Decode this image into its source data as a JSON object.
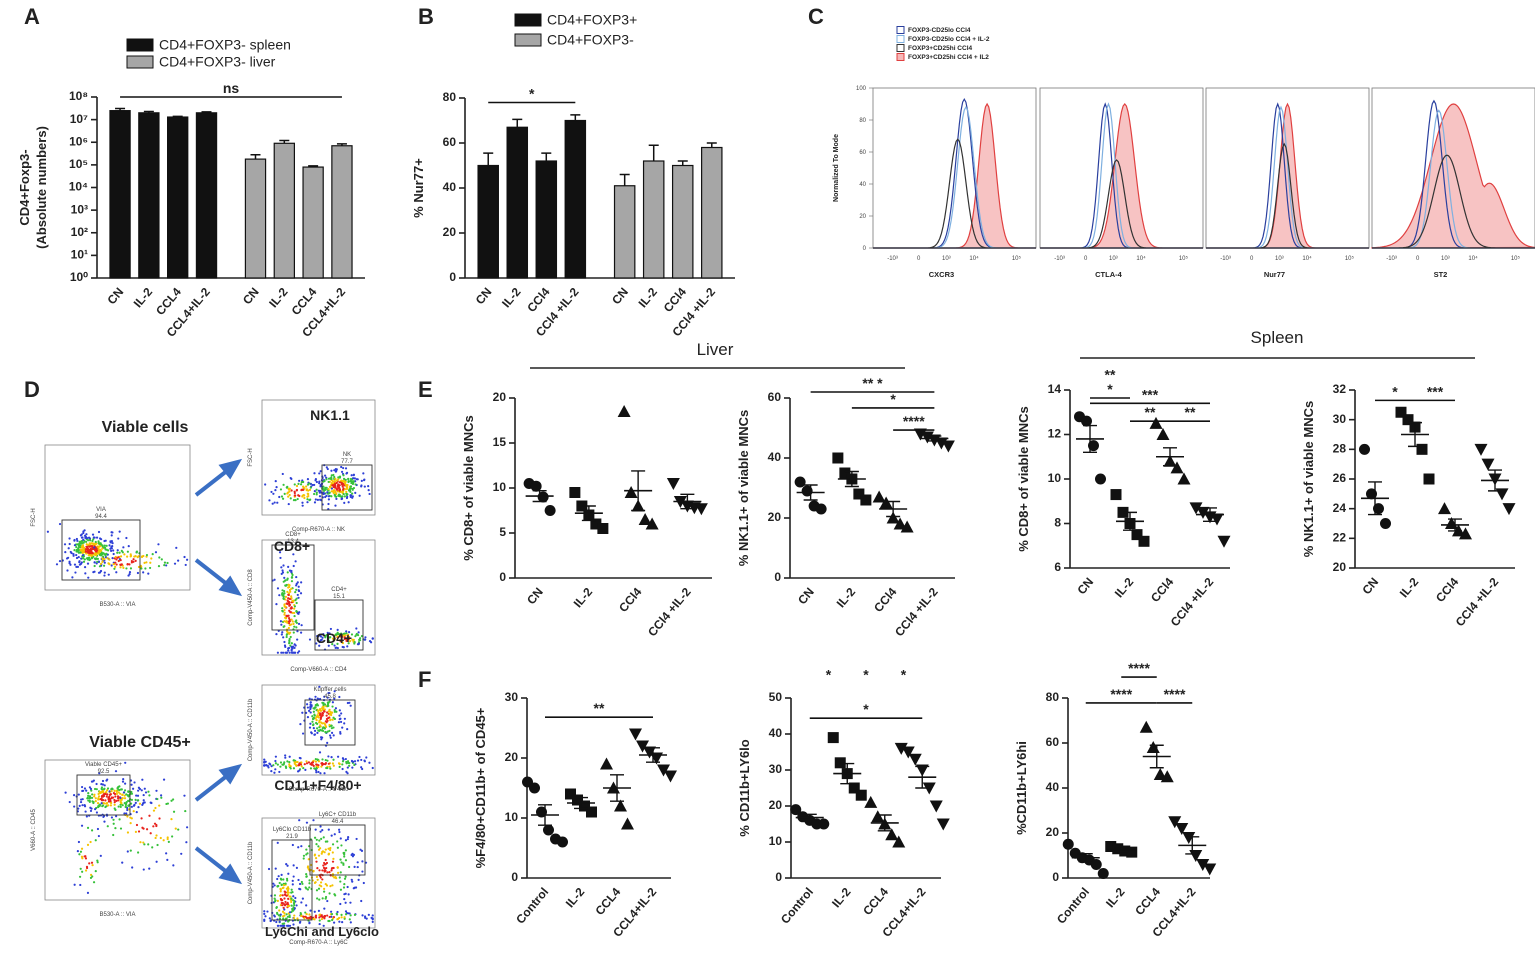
{
  "panel_labels": [
    "A",
    "B",
    "C",
    "D",
    "E",
    "F"
  ],
  "group_labels": {
    "liver": "Liver",
    "spleen": "Spleen"
  },
  "chart_data": [
    {
      "type": "bar",
      "log": true,
      "ylabel": [
        "CD4+Foxp3-",
        "(Absolute numbers)"
      ],
      "categories": [
        "CN",
        "IL-2",
        "CCL4",
        "CCL4+IL-2",
        "CN",
        "IL-2",
        "CCL4",
        "CCL4+IL-2"
      ],
      "series": [
        {
          "name": "CD4+FOXP3- spleen",
          "color": "#111111",
          "values": [
            25000000,
            20000000,
            13000000,
            20000000,
            null,
            null,
            null,
            null
          ],
          "errors": [
            6000000,
            3000000,
            1000000,
            2000000,
            null,
            null,
            null,
            null
          ]
        },
        {
          "name": "CD4+FOXP3- liver",
          "color": "#a6a6a6",
          "values": [
            null,
            null,
            null,
            null,
            180000,
            900000,
            80000,
            700000
          ],
          "errors": [
            null,
            null,
            null,
            null,
            100000,
            300000,
            10000,
            150000
          ]
        }
      ],
      "ylim": [
        1,
        100000000
      ],
      "yticks": [
        {
          "value": 1,
          "label": "10⁰"
        },
        {
          "value": 10,
          "label": "10¹"
        },
        {
          "value": 100,
          "label": "10²"
        },
        {
          "value": 1000,
          "label": "10³"
        },
        {
          "value": 10000,
          "label": "10⁴"
        },
        {
          "value": 100000,
          "label": "10⁵"
        },
        {
          "value": 1000000,
          "label": "10⁶"
        },
        {
          "value": 10000000,
          "label": "10⁷"
        },
        {
          "value": 100000000,
          "label": "10⁸"
        }
      ],
      "annotations": [
        {
          "text": "ns",
          "from": 0,
          "to": 7,
          "y": 100000000
        }
      ]
    },
    {
      "type": "bar",
      "ylabel": "% Nur77+",
      "categories": [
        "CN",
        "IL-2",
        "CCl4",
        "CCl4 +IL-2",
        "CN",
        "IL-2",
        "CCl4",
        "CCl4 +IL-2"
      ],
      "series": [
        {
          "name": "CD4+FOXP3+",
          "color": "#111111",
          "values": [
            50,
            67,
            52,
            70,
            null,
            null,
            null,
            null
          ],
          "errors": [
            5.5,
            3.5,
            3.5,
            2.5,
            null,
            null,
            null,
            null
          ]
        },
        {
          "name": "CD4+FOXP3-",
          "color": "#a6a6a6",
          "values": [
            null,
            null,
            null,
            null,
            41,
            52,
            50,
            58
          ],
          "errors": [
            null,
            null,
            null,
            null,
            5,
            7,
            2,
            2
          ]
        }
      ],
      "ylim": [
        0,
        80
      ],
      "yticks": [
        0,
        20,
        40,
        60,
        80
      ],
      "annotations": [
        {
          "text": "*",
          "from": 0,
          "to": 3,
          "y": 78
        }
      ]
    },
    {
      "type": "dot",
      "ylabel": "% CD8+ of viable MNCs",
      "categories": [
        "CN",
        "IL-2",
        "CCl4",
        "CCl4 +IL-2"
      ],
      "markers": [
        "circle",
        "square",
        "triangle",
        "triangle-down"
      ],
      "points": [
        [
          10.5,
          10.2,
          9,
          7.5
        ],
        [
          9.5,
          8,
          7,
          6,
          5.5
        ],
        [
          18.5,
          9.5,
          8,
          6.5,
          6
        ],
        [
          10.5,
          8.5,
          8,
          7.8,
          7.7
        ]
      ],
      "means": [
        9.1,
        7.2,
        9.7,
        8.5
      ],
      "sem": [
        0.6,
        0.8,
        2.2,
        0.8
      ],
      "ylim": [
        0,
        20
      ],
      "yticks": [
        0,
        5,
        10,
        15,
        20
      ],
      "annotations": []
    },
    {
      "type": "dot",
      "ylabel": "% NK1.1+ of viable MNCs",
      "categories": [
        "CN",
        "IL-2",
        "CCl4",
        "CCl4 +IL-2"
      ],
      "markers": [
        "circle",
        "square",
        "triangle",
        "triangle-down"
      ],
      "points": [
        [
          32,
          29,
          24,
          23
        ],
        [
          40,
          35,
          33,
          28,
          26
        ],
        [
          27,
          25,
          20,
          18,
          17
        ],
        [
          48,
          47,
          46,
          45,
          44
        ]
      ],
      "means": [
        28.5,
        33,
        23,
        46.5
      ],
      "sem": [
        2.5,
        2.5,
        2.5,
        0.8
      ],
      "ylim": [
        0,
        60
      ],
      "yticks": [
        0,
        20,
        40,
        60
      ],
      "annotations": [
        {
          "text": "** *",
          "from": 0,
          "to": 3,
          "y": 62
        },
        {
          "text": "*",
          "from": 1,
          "to": 3,
          "y": 56.7
        },
        {
          "text": "****",
          "from": 2,
          "to": 3,
          "y": 49.3
        }
      ]
    },
    {
      "type": "dot",
      "ylabel": "% CD8+ of viable MNCs",
      "categories": [
        "CN",
        "IL-2",
        "CCl4",
        "CCl4 +IL-2"
      ],
      "markers": [
        "circle",
        "square",
        "triangle",
        "triangle-down"
      ],
      "points": [
        [
          12.8,
          12.6,
          11.5,
          10
        ],
        [
          9.3,
          8.5,
          8,
          7.5,
          7.2
        ],
        [
          12.5,
          12,
          10.8,
          10.5,
          10
        ],
        [
          8.7,
          8.5,
          8.3,
          8.2,
          7.2
        ]
      ],
      "means": [
        11.8,
        8.1,
        11,
        8.4
      ],
      "sem": [
        0.6,
        0.4,
        0.4,
        0.3
      ],
      "ylim": [
        6,
        14
      ],
      "yticks": [
        6,
        8,
        10,
        12,
        14
      ],
      "annotations": [
        {
          "text": "**",
          "from": 0,
          "to": 1,
          "y": 14.3,
          "line": false
        },
        {
          "text": "*",
          "from": 0,
          "to": 1,
          "y": 13.64
        },
        {
          "text": "***",
          "from": 0,
          "to": 3,
          "y": 13.4
        },
        {
          "text": "**",
          "from": 1,
          "to": 2,
          "y": 12.6
        },
        {
          "text": "**",
          "from": 2,
          "to": 3,
          "y": 12.6
        }
      ]
    },
    {
      "type": "dot",
      "ylabel": "% NK1.1+ of viable MNCs",
      "categories": [
        "CN",
        "IL-2",
        "CCl4",
        "CCl4 +IL-2"
      ],
      "markers": [
        "circle",
        "square",
        "triangle",
        "triangle-down"
      ],
      "points": [
        [
          28,
          25,
          24,
          23
        ],
        [
          30.5,
          30,
          29.5,
          28,
          26
        ],
        [
          24,
          23,
          22.5,
          22.3
        ],
        [
          28,
          27,
          26,
          25,
          24
        ]
      ],
      "means": [
        24.7,
        29,
        22.9,
        25.9
      ],
      "sem": [
        1.1,
        0.8,
        0.4,
        0.7
      ],
      "ylim": [
        20,
        32
      ],
      "yticks": [
        20,
        22,
        24,
        26,
        28,
        30,
        32
      ],
      "annotations": [
        {
          "text": "*",
          "from": 0,
          "to": 1,
          "y": 31.3
        },
        {
          "text": "***",
          "from": 1,
          "to": 2,
          "y": 31.3
        }
      ]
    },
    {
      "type": "dot",
      "ylabel": "%F4/80+CD11b+ of CD45+",
      "categories": [
        "Control",
        "IL-2",
        "CCL4",
        "CCL4+IL-2"
      ],
      "markers": [
        "circle",
        "square",
        "triangle",
        "triangle-down"
      ],
      "points": [
        [
          16,
          15,
          11,
          8,
          6.5,
          6
        ],
        [
          14,
          13,
          12,
          11
        ],
        [
          19,
          15,
          12,
          9
        ],
        [
          24,
          22,
          21,
          20,
          18,
          17
        ]
      ],
      "means": [
        10.5,
        12.5,
        15,
        20.5
      ],
      "sem": [
        1.7,
        0.9,
        2.2,
        1.2
      ],
      "ylim": [
        0,
        30
      ],
      "yticks": [
        0,
        10,
        20,
        30
      ],
      "annotations": [
        {
          "text": "**",
          "from": 0,
          "to": 3,
          "y": 26.8
        }
      ]
    },
    {
      "type": "dot",
      "ylabel": "% CD11b+LY6lo",
      "categories": [
        "Control",
        "IL-2",
        "CCL4",
        "CCL4+IL-2"
      ],
      "markers": [
        "circle",
        "square",
        "triangle",
        "triangle-down"
      ],
      "points": [
        [
          19,
          17,
          16,
          15,
          15
        ],
        [
          39,
          32,
          29,
          25,
          23
        ],
        [
          21,
          17,
          15,
          12,
          10
        ],
        [
          36,
          35,
          33,
          30,
          25,
          20,
          15
        ]
      ],
      "means": [
        16.8,
        29,
        15.3,
        28
      ],
      "sem": [
        0.9,
        2.8,
        2.2,
        3
      ],
      "ylim": [
        0,
        50
      ],
      "yticks": [
        0,
        10,
        20,
        30,
        40,
        50
      ],
      "annotations": [
        {
          "text": "*",
          "from": 0,
          "to": 1,
          "y": 54,
          "line": false
        },
        {
          "text": "*",
          "from": 1,
          "to": 2,
          "y": 54,
          "line": false
        },
        {
          "text": "*",
          "from": 2,
          "to": 3,
          "y": 54,
          "line": false
        },
        {
          "text": "*",
          "from": 0,
          "to": 3,
          "y": 44.4
        }
      ]
    },
    {
      "type": "dot",
      "ylabel": "%CD11b+LY6hi",
      "categories": [
        "Control",
        "IL-2",
        "CCL4",
        "CCL4+IL-2"
      ],
      "markers": [
        "circle",
        "square",
        "triangle",
        "triangle-down"
      ],
      "points": [
        [
          15,
          11,
          9,
          8,
          6,
          2
        ],
        [
          14,
          13,
          12,
          11.5
        ],
        [
          67,
          58,
          46,
          45
        ],
        [
          25,
          22,
          18,
          10,
          6,
          4
        ]
      ],
      "means": [
        9,
        12.5,
        54,
        14.5
      ],
      "sem": [
        1.8,
        0.8,
        5,
        3.8
      ],
      "ylim": [
        0,
        80
      ],
      "yticks": [
        0,
        20,
        40,
        60,
        80
      ],
      "annotations": [
        {
          "text": "****",
          "from": 1,
          "to": 2,
          "y": 89.3
        },
        {
          "text": "****",
          "from": 0,
          "to": 2,
          "y": 77.8
        },
        {
          "text": "****",
          "from": 2,
          "to": 3,
          "y": 77.8
        }
      ]
    }
  ],
  "panel_c": {
    "legend": [
      {
        "label": "FOXP3-CD25lo CCl4",
        "color": "#2a3f9e"
      },
      {
        "label": "FOXP3-CD25lo CCl4 + IL-2",
        "color": "#7fb0e0"
      },
      {
        "label": "FOXP3+CD25hi CCl4",
        "color": "#333333"
      },
      {
        "label": "FOXP3+CD25hi CCl4 + IL2",
        "color": "#e04040"
      }
    ],
    "ylabel": "Normalized To Mode",
    "yticks": [
      0,
      20,
      40,
      60,
      80,
      100
    ],
    "xlabels": [
      "CXCR3",
      "CTLA-4",
      "Nur77",
      "ST2"
    ],
    "xtick_labels": [
      "-10³",
      "0",
      "10³",
      "10⁴",
      "10⁵"
    ]
  },
  "panel_d": {
    "plots": [
      {
        "title": "Viable cells",
        "gate": "VIA",
        "value": "94.4",
        "ylabel": "FSC-H",
        "xlabel": "B530-A :: VIA"
      },
      {
        "title": "NK1.1",
        "gate": "NK",
        "value": "77.7",
        "ylabel": "FSC-H",
        "xlabel": "Comp-R670-A :: NK"
      },
      {
        "title": "CD8+",
        "title2": "CD4+",
        "gate": "CD8+",
        "value": "13.4",
        "gate2": "CD4+",
        "value2": "15.1",
        "ylabel": "Comp-V450-A :: CD8",
        "xlabel": "Comp-V660-A :: CD4"
      },
      {
        "title": "Viable CD45+",
        "gate": "Viable CD45+",
        "value": "92.5",
        "ylabel": "V660-A :: CD45",
        "xlabel": "B530-A :: VIA"
      },
      {
        "title": "CD11+F4/80+",
        "gate": "Kupffer cells",
        "value": "45.8",
        "ylabel": "Comp-V450-A :: CD11b",
        "xlabel": "Comp-R670-A :: F4/80"
      },
      {
        "title": "Ly6Chi and Ly6clo",
        "gate": "Ly6Clo CD11b",
        "value": "21.9",
        "gate2": "Ly6C+ CD11b",
        "value2": "46.4",
        "ylabel": "Comp-V450-A :: CD11b",
        "xlabel": "Comp-R670-A :: Ly6C"
      }
    ]
  }
}
